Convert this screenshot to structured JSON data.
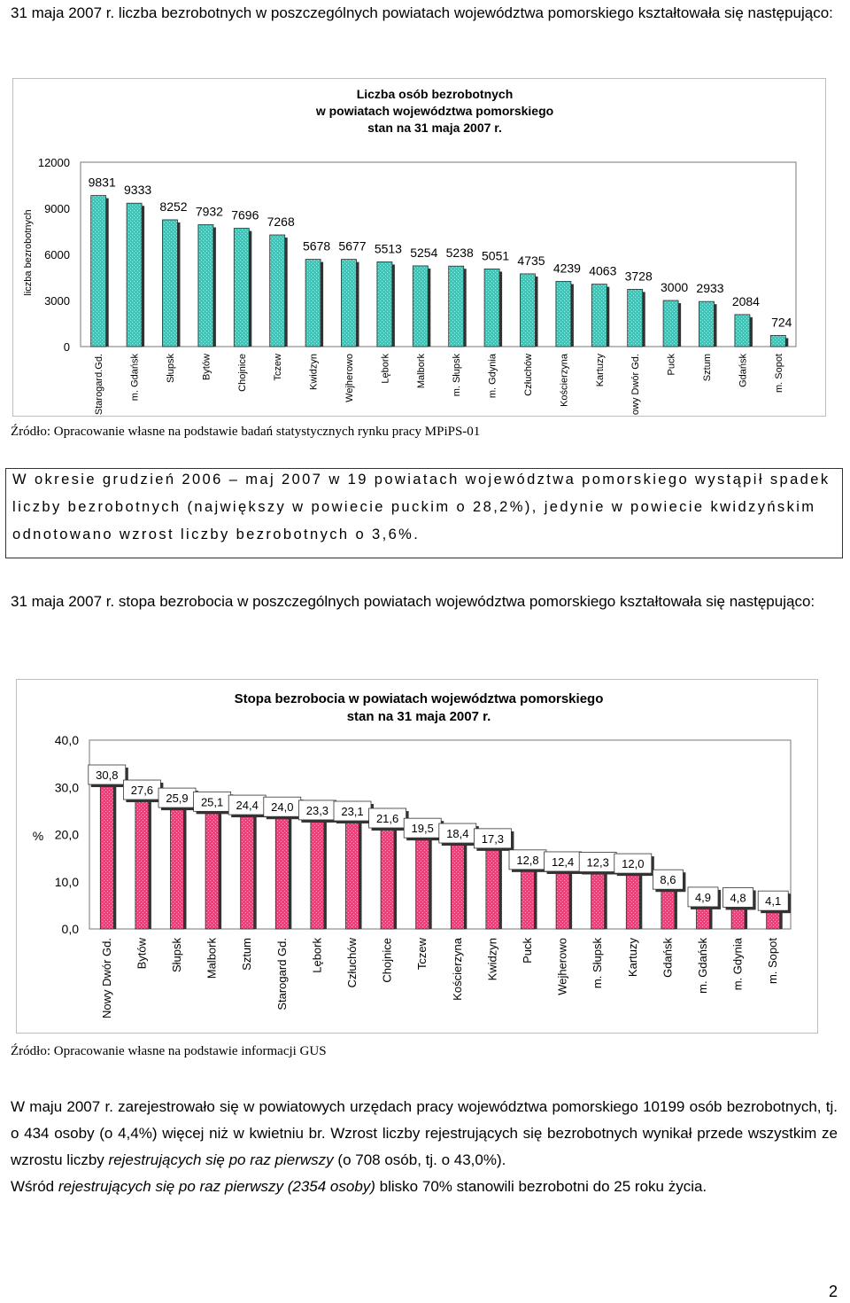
{
  "intro1": "31 maja 2007 r. liczba bezrobotnych w poszczególnych powiatach województwa pomorskiego kształtowała się następująco:",
  "chart1": {
    "title_lines": [
      "Liczba osób bezrobotnych",
      "w powiatach województwa pomorskiego",
      "stan na 31 maja 2007 r."
    ],
    "source": "Źródło: Opracowanie własne na podstawie badań statystycznych rynku pracy MPiPS-01"
  },
  "boxed_text": "W okresie grudzień 2006 – maj 2007 w 19 powiatach województwa pomorskiego wystąpił spadek liczby bezrobotnych (największy w powiecie puckim o 28,2%), jedynie w powiecie kwidzyńskim odnotowano wzrost liczby bezrobotnych o 3,6%.",
  "intro2": "31 maja 2007 r. stopa bezrobocia w poszczególnych powiatach województwa pomorskiego kształtowała się następująco:",
  "chart2": {
    "title_lines": [
      "Stopa bezrobocia w powiatach województwa pomorskiego",
      "stan na 31 maja 2007 r."
    ],
    "source": "Źródło: Opracowanie własne na podstawie informacji GUS"
  },
  "closing": {
    "p1": "W maju 2007 r. zarejestrowało się w powiatowych urzędach pracy województwa pomorskiego 10199 osób bezrobotnych, tj. o 434 osoby (o 4,4%) więcej niż w kwietniu br. Wzrost liczby rejestrujących się bezrobotnych wynikał przede wszystkim ze wzrostu liczby ",
    "p1_italic": "rejestrujących się po raz pierwszy",
    "p1_tail": " (o 708 osób, tj. o 43,0%).",
    "p2_head": "Wśród ",
    "p2_italic": "rejestrujących się po raz pierwszy (2354 osoby)",
    "p2_tail": " blisko 70% stanowili bezrobotni do 25 roku życia."
  },
  "page_number": "2",
  "chart_data": [
    {
      "type": "bar",
      "title": "Liczba osób bezrobotnych w powiatach województwa pomorskiego stan na 31 maja 2007 r.",
      "ylabel": "liczba bezrobotnych",
      "ylim": [
        0,
        12000
      ],
      "yticks": [
        "0",
        "3000",
        "6000",
        "9000",
        "12000"
      ],
      "grid": false,
      "bar_color": "#45c3b7",
      "categories": [
        "Starogard.Gd.",
        "m. Gdańsk",
        "Słupsk",
        "Bytów",
        "Chojnice",
        "Tczew",
        "Kwidzyn",
        "Wejherowo",
        "Lębork",
        "Malbork",
        "m. Słupsk",
        "m. Gdynia",
        "Człuchów",
        "Kościerzyna",
        "Kartuzy",
        "Nowy Dwór Gd.",
        "Puck",
        "Sztum",
        "Gdańsk",
        "m. Sopot"
      ],
      "values": [
        9831,
        9333,
        8252,
        7932,
        7696,
        7268,
        5678,
        5677,
        5513,
        5254,
        5238,
        5051,
        4735,
        4239,
        4063,
        3728,
        3000,
        2933,
        2084,
        724
      ]
    },
    {
      "type": "bar",
      "title": "Stopa bezrobocia w powiatach województwa pomorskiego stan na 31 maja 2007 r.",
      "ylabel": "%",
      "ylim": [
        0,
        40
      ],
      "yticks": [
        "0,0",
        "10,0",
        "20,0",
        "30,0",
        "40,0"
      ],
      "grid": false,
      "bar_color": "#e8447a",
      "categories": [
        "Nowy Dwór Gd.",
        "Bytów",
        "Słupsk",
        "Malbork",
        "Sztum",
        "Starogard Gd.",
        "Lębork",
        "Człuchów",
        "Chojnice",
        "Tczew",
        "Kościerzyna",
        "Kwidzyn",
        "Puck",
        "Wejherowo",
        "m. Słupsk",
        "Kartuzy",
        "Gdańsk",
        "m. Gdańsk",
        "m. Gdynia",
        "m. Sopot"
      ],
      "values": [
        30.8,
        27.6,
        25.9,
        25.1,
        24.4,
        24.0,
        23.3,
        23.1,
        21.6,
        19.5,
        18.4,
        17.3,
        12.8,
        12.4,
        12.3,
        12.0,
        8.6,
        4.9,
        4.8,
        4.1
      ],
      "value_labels": [
        "30,8",
        "27,6",
        "25,9",
        "25,1",
        "24,4",
        "24,0",
        "23,3",
        "23,1",
        "21,6",
        "19,5",
        "18,4",
        "17,3",
        "12,8",
        "12,4",
        "12,3",
        "12,0",
        "8,6",
        "4,9",
        "4,8",
        "4,1"
      ]
    }
  ]
}
